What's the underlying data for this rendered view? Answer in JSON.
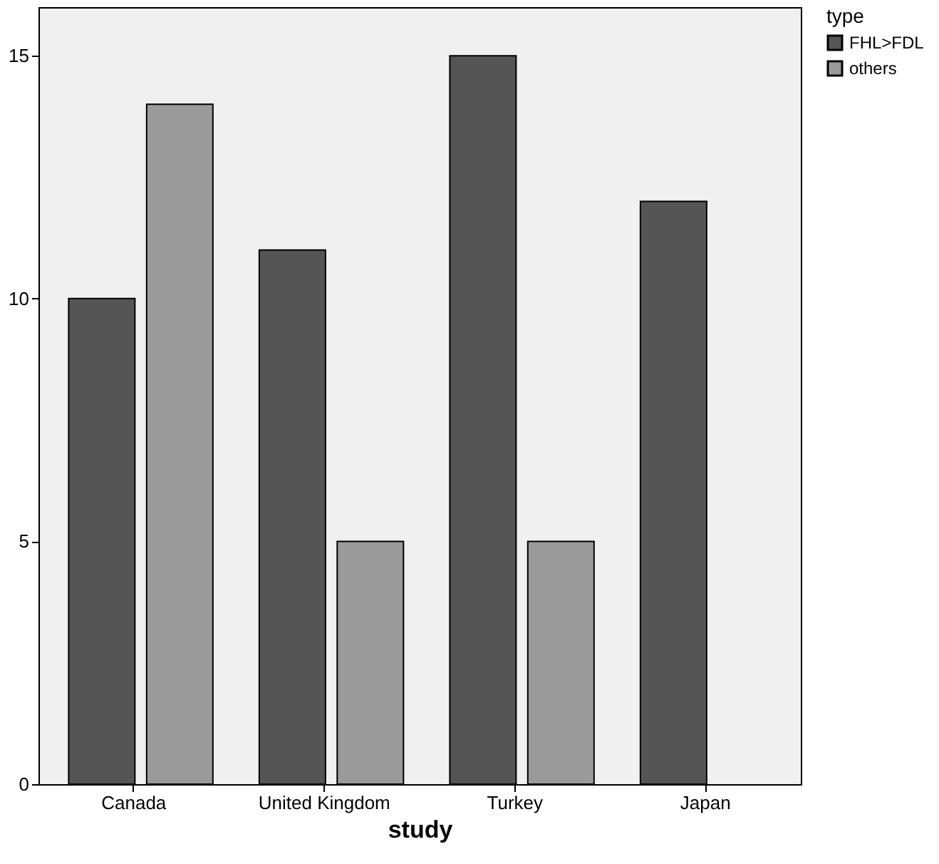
{
  "chart_data": {
    "type": "bar",
    "xlabel": "study",
    "legend_title": "type",
    "categories": [
      "Canada",
      "United Kingdom",
      "Turkey",
      "Japan"
    ],
    "series": [
      {
        "name": "FHL>FDL",
        "color": "#555555",
        "values": [
          10,
          11,
          15,
          12
        ]
      },
      {
        "name": "others",
        "color": "#9a9a9a",
        "values": [
          14,
          5,
          5,
          null
        ]
      }
    ],
    "ylim": [
      0,
      16
    ],
    "yticks": [
      0,
      5,
      10,
      15
    ],
    "grid": false,
    "legend": "top right"
  }
}
